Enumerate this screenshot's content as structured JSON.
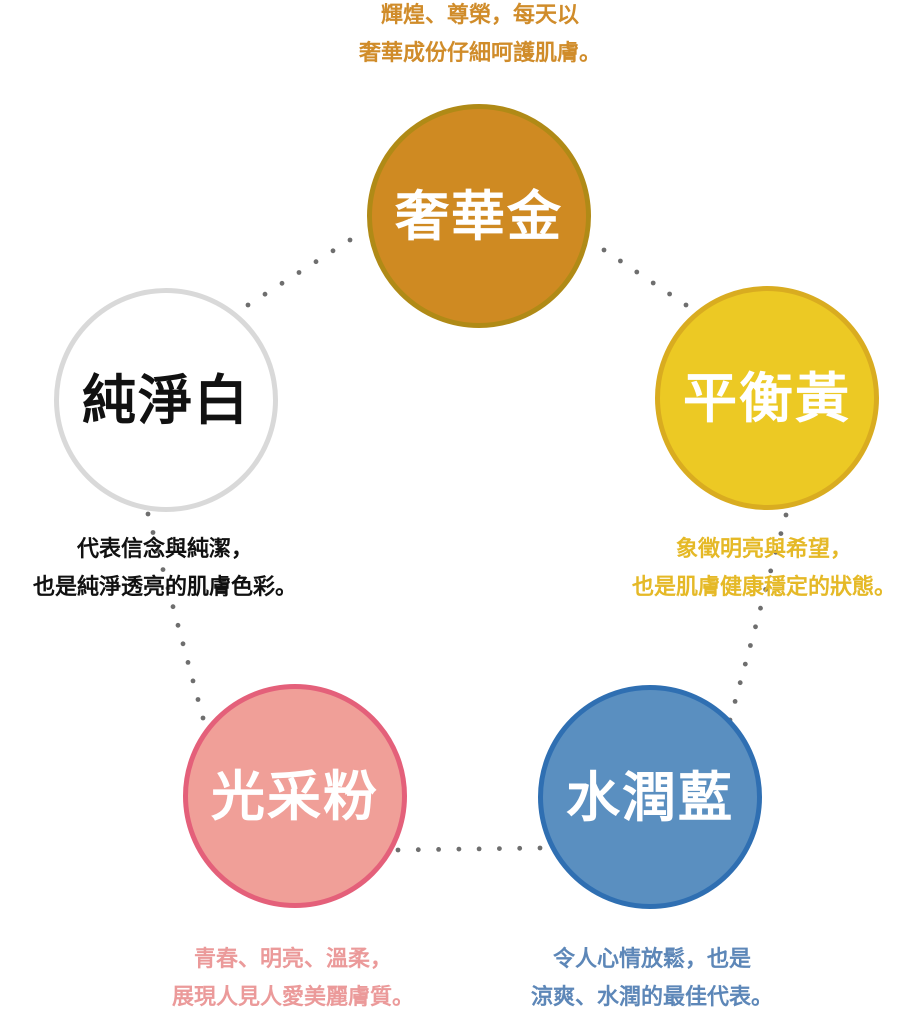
{
  "colors": {
    "gold": "#cf8a22",
    "yellow": "#ecc924",
    "white": "#ffffff",
    "pink": "#f09f98",
    "blue": "#5a8fc0",
    "dots": "#6e6e6e"
  },
  "nodes": {
    "gold": {
      "title": "奢華金",
      "desc": [
        "輝煌、尊榮，每天以",
        "奢華成份仔細呵護肌膚。"
      ]
    },
    "yellow": {
      "title": "平衡黃",
      "desc": [
        "象徵明亮與希望，",
        "也是肌膚健康穩定的狀態。"
      ]
    },
    "white": {
      "title": "純淨白",
      "desc": [
        "代表信念與純潔，",
        "也是純淨透亮的肌膚色彩。"
      ]
    },
    "pink": {
      "title": "光采粉",
      "desc": [
        "青春、明亮、溫柔，",
        "展現人見人愛美麗膚質。"
      ]
    },
    "blue": {
      "title": "水潤藍",
      "desc": [
        "令人心情放鬆，也是",
        "涼爽、水潤的最佳代表。"
      ]
    }
  }
}
